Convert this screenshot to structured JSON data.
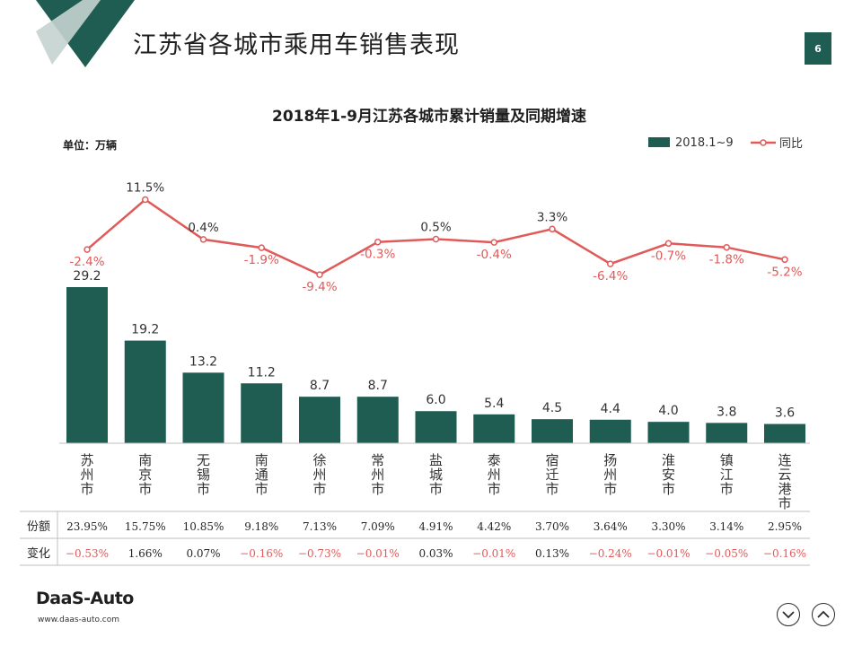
{
  "header": {
    "title": "江苏省各城市乘用车销售表现",
    "page_number": "6"
  },
  "footer": {
    "logo_text": "DaaS-Auto",
    "url": "www.daas-auto.com"
  },
  "colors": {
    "bar": "#1f5c52",
    "line": "#e05a5a",
    "negative": "#e05a5a",
    "accent_dark": "#1f5c52",
    "accent_light": "#b9c9c5"
  },
  "chart_data": {
    "type": "bar",
    "title": "2018年1-9月江苏各城市累计销量及同期增速",
    "unit_label": "单位：万辆",
    "legend": [
      "2018.1~9",
      "同比"
    ],
    "legend_position": "top-right",
    "grid": false,
    "categories": [
      "苏州市",
      "南京市",
      "无锡市",
      "南通市",
      "徐州市",
      "常州市",
      "盐城市",
      "泰州市",
      "宿迁市",
      "扬州市",
      "淮安市",
      "镇江市",
      "连云港市"
    ],
    "series": [
      {
        "name": "2018.1~9",
        "type": "bar",
        "values": [
          29.2,
          19.2,
          13.2,
          11.2,
          8.7,
          8.7,
          6.0,
          5.4,
          4.5,
          4.4,
          4.0,
          3.8,
          3.6
        ],
        "labels": [
          "29.2",
          "19.2",
          "13.2",
          "11.2",
          "8.7",
          "8.7",
          "6.0",
          "5.4",
          "4.5",
          "4.4",
          "4.0",
          "3.8",
          "3.6"
        ]
      },
      {
        "name": "同比",
        "type": "line",
        "values": [
          -2.4,
          11.5,
          0.4,
          -1.9,
          -9.4,
          -0.3,
          0.5,
          -0.4,
          3.3,
          -6.4,
          -0.7,
          -1.8,
          -5.2
        ],
        "labels": [
          "-2.4%",
          "11.5%",
          "0.4%",
          "-1.9%",
          "-9.4%",
          "-0.3%",
          "0.5%",
          "-0.4%",
          "3.3%",
          "-6.4%",
          "-0.7%",
          "-1.8%",
          "-5.2%"
        ]
      }
    ],
    "table": {
      "rows": [
        {
          "label": "份额",
          "values": [
            "23.95%",
            "15.75%",
            "10.85%",
            "9.18%",
            "7.13%",
            "7.09%",
            "4.91%",
            "4.42%",
            "3.70%",
            "3.64%",
            "3.30%",
            "3.14%",
            "2.95%"
          ]
        },
        {
          "label": "变化",
          "values": [
            "−0.53%",
            "1.66%",
            "0.07%",
            "−0.16%",
            "−0.73%",
            "−0.01%",
            "0.03%",
            "−0.01%",
            "0.13%",
            "−0.24%",
            "−0.01%",
            "−0.05%",
            "−0.16%"
          ]
        }
      ]
    }
  }
}
